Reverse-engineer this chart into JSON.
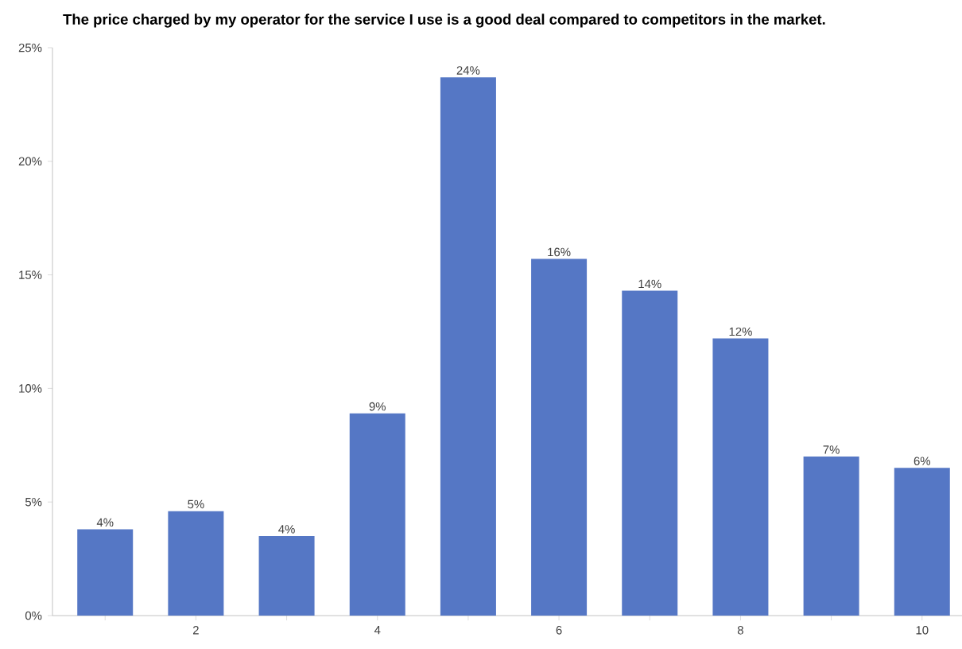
{
  "chart_data": {
    "type": "bar",
    "title": "The price charged by my operator for the service I use is a good deal compared to competitors in the market.",
    "categories": [
      null,
      "2",
      null,
      "4",
      null,
      "6",
      null,
      "8",
      null,
      "10"
    ],
    "values": [
      3.8,
      4.6,
      3.5,
      8.9,
      23.7,
      15.7,
      14.3,
      12.2,
      7.0,
      6.5
    ],
    "value_labels": [
      "4%",
      "5%",
      "4%",
      "9%",
      "24%",
      "16%",
      "14%",
      "12%",
      "7%",
      "6%"
    ],
    "color": "#5577c5",
    "ylim": [
      0,
      25
    ],
    "yticks": [
      {
        "value": 0,
        "label": "0%"
      },
      {
        "value": 5,
        "label": "5%"
      },
      {
        "value": 10,
        "label": "10%"
      },
      {
        "value": 15,
        "label": "15%"
      },
      {
        "value": 20,
        "label": "20%"
      },
      {
        "value": 25,
        "label": "25%"
      }
    ]
  }
}
